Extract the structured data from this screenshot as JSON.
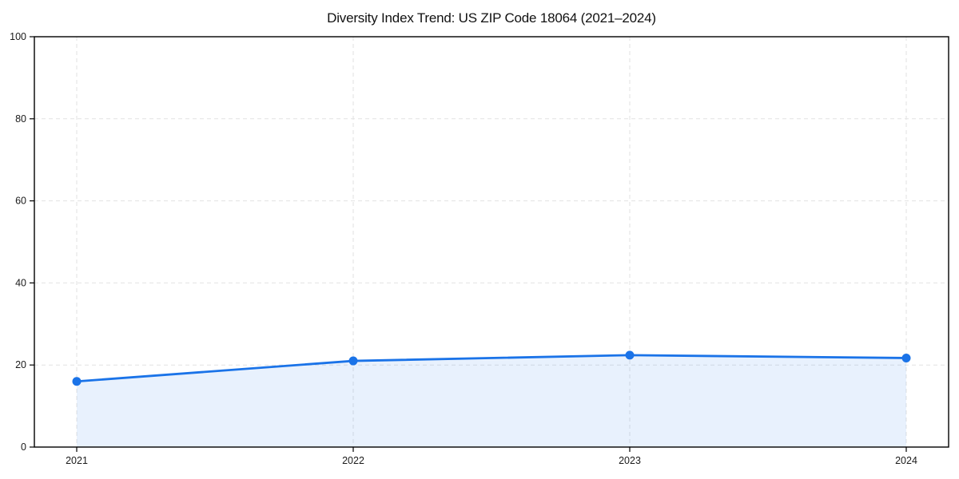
{
  "chart_data": {
    "type": "line",
    "title": "Diversity Index Trend: US ZIP Code 18064 (2021–2024)",
    "categories": [
      "2021",
      "2022",
      "2023",
      "2024"
    ],
    "series": [
      {
        "name": "Diversity Index",
        "values": [
          16,
          21,
          22.4,
          21.7
        ]
      }
    ],
    "xlabel": "",
    "ylabel": "",
    "ylim": [
      0,
      100
    ],
    "y_ticks": [
      0,
      20,
      40,
      60,
      80,
      100
    ],
    "grid": true,
    "grid_style": "dashed",
    "area_fill": true,
    "legend_position": "none",
    "colors": {
      "line": "#1a73e8",
      "marker": "#1a73e8",
      "area_fill": "rgba(26,115,232,0.10)",
      "grid": "#e2e2e2",
      "spine": "#000000",
      "tick_label": "#1a1a1a",
      "title": "#111111",
      "background": "#ffffff"
    }
  }
}
